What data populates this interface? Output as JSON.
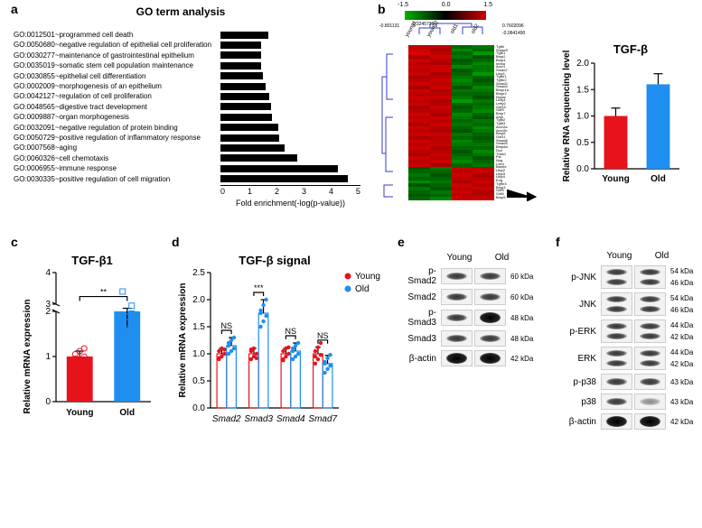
{
  "panel_a": {
    "label": "a",
    "title": "GO term analysis",
    "terms": [
      "GO:0012501~programmed cell death",
      "GO:0050680~negative regulation of epithelial cell proliferation",
      "GO:0030277~maintenance of gastrointestinal epithelium",
      "GO:0035019~somatic stem cell population maintenance",
      "GO:0030855~epithelial cell differentiation",
      "GO:0002009~morphogenesis of an epithelium",
      "GO:0042127~regulation of cell proliferation",
      "GO:0048565~digestive tract development",
      "GO:0009887~organ morphogenesis",
      "GO:0032091~negative regulation of protein binding",
      "GO:0050729~positive regulation of inflammatory response",
      "GO:0007568~aging",
      "GO:0060326~cell chemotaxis",
      "GO:0006955~immune response",
      "GO:0030335~positive regulation of cell migration"
    ],
    "values": [
      1.7,
      1.45,
      1.45,
      1.45,
      1.5,
      1.6,
      1.75,
      1.8,
      1.85,
      2.05,
      2.1,
      2.3,
      2.75,
      4.2,
      4.55
    ],
    "xlim": [
      0,
      5
    ],
    "xtick_step": 1,
    "xlabel": "Fold enrichment(-log(p-value))",
    "bar_color": "#000000"
  },
  "panel_b": {
    "label": "b",
    "legend_min": "-1.5",
    "legend_mid": "0.0",
    "legend_max": "1.5",
    "cols": [
      "young1",
      "young2",
      "old1",
      "old2"
    ],
    "top_corr_left": "-0.801131",
    "top_corr_mid": "-0.3245715",
    "top_corr_right1": "0.7602096",
    "top_corr_right2": "-0.0641490",
    "rows": [
      "Tgfbi",
      "Smad3",
      "Tgfb1",
      "Bmp2",
      "Bmp4",
      "Inhba",
      "Acvr1",
      "Smad7",
      "Ltbp1",
      "Tgfbr1",
      "Tgfbr2",
      "Smad2",
      "Smad4",
      "Bmpr1a",
      "Bmpr2",
      "Nodal",
      "Lefty1",
      "Lefty2",
      "Gdf15",
      "Gdf9",
      "Bmp7",
      "Amh",
      "Tgfb2",
      "Tgfb3",
      "Acvr2a",
      "Acvr2b",
      "Bmp6",
      "Gdf11",
      "Smad6",
      "Smad5",
      "Bmp8a",
      "Dcn",
      "Thbs1",
      "Fst",
      "Nog",
      "Chrd",
      "Bambi",
      "Ltbp2",
      "Ltbp3",
      "Ltbp4",
      "Eng",
      "Tgfbr3",
      "Bmp3",
      "Gdf5",
      "Gdf6",
      "Bmp5"
    ],
    "heatmap_grid": [
      [
        "#b00",
        "#b00",
        "#060",
        "#070"
      ],
      [
        "#c00",
        "#a00",
        "#080",
        "#060"
      ],
      [
        "#d00",
        "#b00",
        "#060",
        "#090"
      ],
      [
        "#a00",
        "#c00",
        "#070",
        "#050"
      ],
      [
        "#c00",
        "#b00",
        "#050",
        "#060"
      ],
      [
        "#b00",
        "#a00",
        "#060",
        "#080"
      ],
      [
        "#c00",
        "#c00",
        "#080",
        "#070"
      ],
      [
        "#b00",
        "#c00",
        "#050",
        "#070"
      ],
      [
        "#c00",
        "#a00",
        "#060",
        "#090"
      ],
      [
        "#a00",
        "#b00",
        "#070",
        "#060"
      ],
      [
        "#b00",
        "#c00",
        "#080",
        "#050"
      ],
      [
        "#c00",
        "#b00",
        "#070",
        "#060"
      ],
      [
        "#a00",
        "#c00",
        "#050",
        "#080"
      ],
      [
        "#c00",
        "#a00",
        "#070",
        "#070"
      ],
      [
        "#b00",
        "#b00",
        "#060",
        "#060"
      ],
      [
        "#c00",
        "#c00",
        "#070",
        "#050"
      ],
      [
        "#b00",
        "#a00",
        "#090",
        "#070"
      ],
      [
        "#c00",
        "#b00",
        "#060",
        "#060"
      ],
      [
        "#a00",
        "#c00",
        "#050",
        "#070"
      ],
      [
        "#b00",
        "#b00",
        "#060",
        "#080"
      ],
      [
        "#c00",
        "#a00",
        "#080",
        "#060"
      ],
      [
        "#b00",
        "#c00",
        "#070",
        "#050"
      ],
      [
        "#c00",
        "#b00",
        "#060",
        "#070"
      ],
      [
        "#a00",
        "#c00",
        "#070",
        "#060"
      ],
      [
        "#c00",
        "#b00",
        "#060",
        "#080"
      ],
      [
        "#b00",
        "#a00",
        "#050",
        "#070"
      ],
      [
        "#c00",
        "#c00",
        "#070",
        "#060"
      ],
      [
        "#a00",
        "#b00",
        "#060",
        "#050"
      ],
      [
        "#c00",
        "#b00",
        "#080",
        "#060"
      ],
      [
        "#b00",
        "#c00",
        "#070",
        "#070"
      ],
      [
        "#c00",
        "#a00",
        "#060",
        "#060"
      ],
      [
        "#b00",
        "#b00",
        "#050",
        "#080"
      ],
      [
        "#a00",
        "#c00",
        "#060",
        "#070"
      ],
      [
        "#c00",
        "#b00",
        "#070",
        "#050"
      ],
      [
        "#b00",
        "#c00",
        "#080",
        "#060"
      ],
      [
        "#c00",
        "#a00",
        "#060",
        "#070"
      ],
      [
        "#050",
        "#070",
        "#c00",
        "#b00"
      ],
      [
        "#060",
        "#060",
        "#b00",
        "#c00"
      ],
      [
        "#070",
        "#050",
        "#c00",
        "#a00"
      ],
      [
        "#060",
        "#060",
        "#b00",
        "#b00"
      ],
      [
        "#080",
        "#070",
        "#a00",
        "#c00"
      ],
      [
        "#050",
        "#060",
        "#c00",
        "#b00"
      ],
      [
        "#070",
        "#050",
        "#b00",
        "#c00"
      ],
      [
        "#060",
        "#070",
        "#c00",
        "#a00"
      ],
      [
        "#050",
        "#060",
        "#b00",
        "#b00"
      ],
      [
        "#060",
        "#080",
        "#c00",
        "#c00"
      ]
    ],
    "tgfb_chart": {
      "title": "TGF-β",
      "ylabel": "Relative RNA sequencing level",
      "categories": [
        "Young",
        "Old"
      ],
      "values": [
        1.0,
        1.6
      ],
      "errors": [
        0.15,
        0.2
      ],
      "colors": [
        "#e8131a",
        "#1f8ef1"
      ],
      "ylim": [
        0,
        2.0
      ],
      "ytick_step": 0.5,
      "bar_width": 0.55
    }
  },
  "panel_c": {
    "label": "c",
    "title": "TGF-β1",
    "ylabel": "Relative mRNA expression",
    "categories": [
      "Young",
      "Old"
    ],
    "means": [
      1.0,
      2.25
    ],
    "errors": [
      0.12,
      0.62
    ],
    "colors": [
      "#e8131a",
      "#1f8ef1"
    ],
    "ylim_low": [
      0,
      2
    ],
    "ylim_high": [
      3,
      4
    ],
    "yticks": [
      0,
      1,
      2,
      3,
      4
    ],
    "sig": "**",
    "points_young": [
      0.85,
      0.92,
      1.0,
      1.05,
      1.12,
      1.18,
      0.95
    ],
    "points_old": [
      1.35,
      1.6,
      1.95,
      2.3,
      2.6,
      2.95,
      3.4
    ]
  },
  "panel_d": {
    "label": "d",
    "title": "TGF-β signal",
    "ylabel": "Relative mRNA expression",
    "categories": [
      "Smad2",
      "Smad3",
      "Smad4",
      "Smad7"
    ],
    "groups": [
      "Young",
      "Old"
    ],
    "group_colors": [
      "#e8131a",
      "#1f8ef1"
    ],
    "young_means": [
      1.0,
      1.0,
      1.0,
      1.0
    ],
    "young_err": [
      0.1,
      0.1,
      0.1,
      0.12
    ],
    "old_means": [
      1.15,
      1.75,
      1.05,
      0.82
    ],
    "old_err": [
      0.15,
      0.25,
      0.15,
      0.15
    ],
    "ylim": [
      0.0,
      2.5
    ],
    "ytick_step": 0.5,
    "sig": [
      "NS",
      "***",
      "NS",
      "NS"
    ],
    "legend": [
      "Young",
      "Old"
    ],
    "points": {
      "young": [
        [
          0.9,
          0.95,
          1.0,
          1.05,
          1.1,
          1.08,
          0.92
        ],
        [
          0.9,
          0.95,
          1.0,
          1.05,
          1.1,
          0.92,
          1.08
        ],
        [
          0.88,
          0.95,
          1.0,
          1.05,
          1.1,
          1.12,
          0.9
        ],
        [
          0.82,
          0.9,
          0.98,
          1.05,
          1.12,
          1.2,
          0.95
        ]
      ],
      "old": [
        [
          1.0,
          1.05,
          1.1,
          1.2,
          1.25,
          1.3,
          1.15
        ],
        [
          1.5,
          1.6,
          1.7,
          1.8,
          1.9,
          2.0,
          1.75
        ],
        [
          0.9,
          0.95,
          1.0,
          1.1,
          1.15,
          1.2,
          1.05
        ],
        [
          0.65,
          0.72,
          0.78,
          0.85,
          0.92,
          0.98,
          0.82
        ]
      ]
    }
  },
  "panel_e": {
    "label": "e",
    "cols": [
      "Young",
      "Old"
    ],
    "rows": [
      {
        "name": "p-Smad2",
        "size": "60 kDa",
        "intensity": [
          0.6,
          0.85
        ]
      },
      {
        "name": "Smad2",
        "size": "60 kDa",
        "intensity": [
          0.7,
          0.7
        ]
      },
      {
        "name": "p-Smad3",
        "size": "48 kDa",
        "intensity": [
          0.85,
          0.95
        ]
      },
      {
        "name": "Smad3",
        "size": "48 kDa",
        "intensity": [
          0.75,
          0.75
        ]
      },
      {
        "name": "β-actin",
        "size": "42 kDa",
        "intensity": [
          0.95,
          0.95
        ]
      }
    ]
  },
  "panel_f": {
    "label": "f",
    "cols": [
      "Young",
      "Old"
    ],
    "rows": [
      {
        "name": "p-JNK",
        "size": "54 kDa",
        "size2": "46 kDa",
        "intensity": [
          0.55,
          0.6
        ],
        "double": true
      },
      {
        "name": "JNK",
        "size": "54 kDa",
        "size2": "46 kDa",
        "intensity": [
          0.7,
          0.7
        ],
        "double": true
      },
      {
        "name": "p-ERK",
        "size": "44 kDa",
        "size2": "42 kDa",
        "intensity": [
          0.7,
          0.75
        ],
        "double": true
      },
      {
        "name": "ERK",
        "size": "44 kDa",
        "size2": "42 kDa",
        "intensity": [
          0.75,
          0.75
        ],
        "double": true
      },
      {
        "name": "p-p38",
        "size": "43 kDa",
        "intensity": [
          0.75,
          0.5
        ]
      },
      {
        "name": "p38",
        "size": "43 kDa",
        "intensity": [
          0.5,
          0.35
        ]
      },
      {
        "name": "β-actin",
        "size": "42 kDa",
        "intensity": [
          0.95,
          0.95
        ]
      }
    ]
  }
}
